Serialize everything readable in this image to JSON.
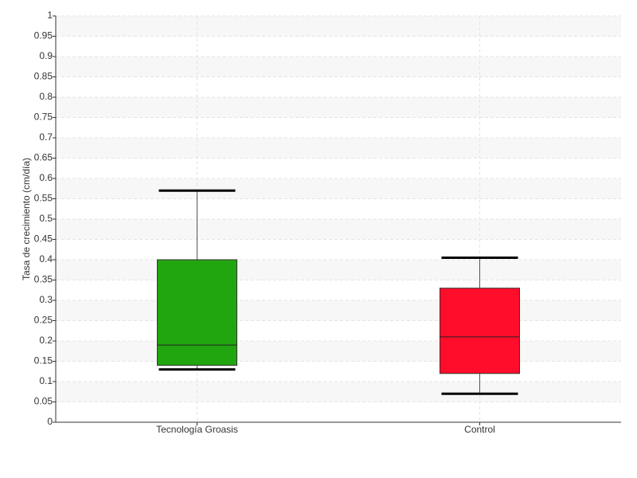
{
  "chart_data": {
    "type": "box",
    "y_label": "Tasa de crecimiento (cm/día)",
    "categories": [
      "Tecnología Groasis",
      "Control"
    ],
    "boxes": [
      {
        "whisker_low": 0.13,
        "q1": 0.14,
        "median": 0.19,
        "q3": 0.4,
        "whisker_high": 0.57,
        "color": "#22a60f"
      },
      {
        "whisker_low": 0.07,
        "q1": 0.12,
        "median": 0.21,
        "q3": 0.33,
        "whisker_high": 0.405,
        "color": "#ff0d2a"
      }
    ],
    "ylim": [
      0,
      1
    ],
    "yticks": [
      0,
      0.05,
      0.1,
      0.15,
      0.2,
      0.25,
      0.3,
      0.35,
      0.4,
      0.45,
      0.5,
      0.55,
      0.6,
      0.65,
      0.7,
      0.75,
      0.8,
      0.85,
      0.9,
      0.95,
      1
    ],
    "grid": true
  }
}
